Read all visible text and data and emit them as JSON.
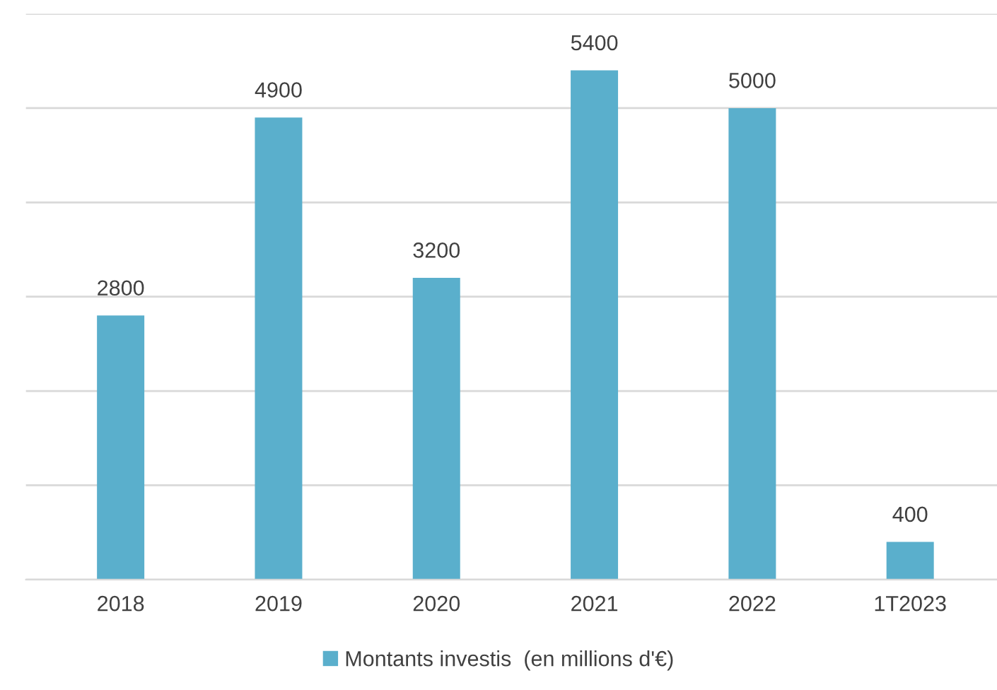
{
  "chart_data": {
    "type": "bar",
    "categories": [
      "2018",
      "2019",
      "2020",
      "2021",
      "2022",
      "1T2023"
    ],
    "series": [
      {
        "name": "Montants investis  (en millions d'€)",
        "color": "#5aafcc",
        "values": [
          2800,
          4900,
          3200,
          5400,
          5000,
          400
        ]
      }
    ],
    "data_labels": true,
    "ylim": [
      0,
      6000
    ],
    "yticks": [
      {
        "value": 0,
        "label": null
      },
      {
        "value": 1000,
        "label": null
      },
      {
        "value": 2000,
        "label": null
      },
      {
        "value": 3000,
        "label": null
      },
      {
        "value": 4000,
        "label": null
      },
      {
        "value": 5000,
        "label": null
      },
      {
        "value": 6000,
        "label": null
      }
    ],
    "tick_labels": "x",
    "grid": "y",
    "legend": "bottom"
  }
}
